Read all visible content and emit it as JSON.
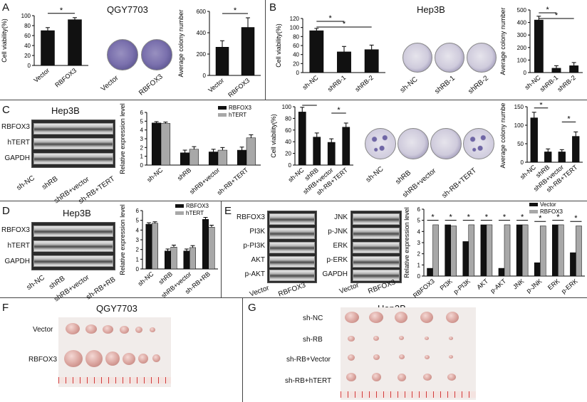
{
  "panels": {
    "A": {
      "label": "A",
      "title": "QGY7703",
      "dish_labels": [
        "Vector",
        "RBFOX3"
      ]
    },
    "B": {
      "label": "B",
      "title": "Hep3B",
      "dish_labels": [
        "sh-NC",
        "shRB-1",
        "shRB-2"
      ]
    },
    "C": {
      "label": "C",
      "blot_title": "Hep3B",
      "blot_rows": [
        "RBFOX3",
        "hTERT",
        "GAPDH"
      ],
      "dish_labels": [
        "sh-NC",
        "shRB",
        "shRB+vector",
        "sh-RB+TERT"
      ]
    },
    "D": {
      "label": "D",
      "blot_title": "Hep3B",
      "blot_rows": [
        "RBFOX3",
        "hTERT",
        "GAPDH"
      ]
    },
    "E": {
      "label": "E",
      "blot_left_rows": [
        "RBFOX3",
        "PI3K",
        "p-PI3K",
        "AKT",
        "p-AKT"
      ],
      "blot_right_rows": [
        "JNK",
        "p-JNK",
        "ERK",
        "p-ERK",
        "GAPDH"
      ],
      "lane_labels": [
        "Vector",
        "RBFOX3"
      ]
    },
    "F": {
      "label": "F",
      "title": "QGY7703",
      "row_labels": [
        "Vector",
        "RBFOX3"
      ]
    },
    "G": {
      "label": "G",
      "title": "Hep3B",
      "row_labels": [
        "sh-NC",
        "sh-RB",
        "sh-RB+Vector",
        "sh-RB+hTERT"
      ]
    }
  },
  "chart_data": [
    {
      "id": "A-viability",
      "type": "bar",
      "categories": [
        "Vector",
        "RBFOX3"
      ],
      "values": [
        70,
        92
      ],
      "errors": [
        6,
        4
      ],
      "ylabel": "Cell viability(%)",
      "ylim": [
        0,
        100
      ],
      "yticks": [
        "0",
        "20",
        "40",
        "60",
        "80",
        "100"
      ],
      "annotation": "*"
    },
    {
      "id": "A-colony",
      "type": "bar",
      "categories": [
        "Vector",
        "RBFOX3"
      ],
      "values": [
        265,
        450
      ],
      "errors": [
        60,
        90
      ],
      "ylabel": "Average colony number",
      "ylim": [
        0,
        600
      ],
      "yticks": [
        "0",
        "200",
        "400",
        "600"
      ],
      "annotation": "*"
    },
    {
      "id": "B-viability",
      "type": "bar",
      "categories": [
        "sh-NC",
        "shRB-1",
        "shRB-2"
      ],
      "values": [
        93,
        46,
        51
      ],
      "errors": [
        5,
        12,
        10
      ],
      "ylabel": "Cell viability(%)",
      "ylim": [
        0,
        120
      ],
      "yticks": [
        "0",
        "20",
        "40",
        "60",
        "80",
        "100",
        "120"
      ],
      "annotation": "*"
    },
    {
      "id": "B-colony",
      "type": "bar",
      "categories": [
        "sh-NC",
        "shRB-1",
        "shRB-2"
      ],
      "values": [
        420,
        35,
        55
      ],
      "errors": [
        30,
        20,
        25
      ],
      "ylabel": "Average colony number",
      "ylim": [
        0,
        500
      ],
      "yticks": [
        "0",
        "100",
        "200",
        "300",
        "400",
        "500"
      ],
      "annotation": "*"
    },
    {
      "id": "C-expression",
      "type": "bar",
      "categories": [
        "sh-NC",
        "shRB",
        "shRB+vector",
        "sh-RB+TERT"
      ],
      "series": [
        {
          "name": "RBFOX3",
          "values": [
            4.8,
            1.4,
            1.5,
            1.7
          ]
        },
        {
          "name": "hTERT",
          "values": [
            4.75,
            1.8,
            1.7,
            3.1
          ]
        }
      ],
      "errors": [
        0.15,
        0.3,
        0.3,
        0.35
      ],
      "ylabel": "Relative expression level",
      "ylim": [
        0,
        6
      ],
      "yticks": [
        "0",
        "1",
        "2",
        "3",
        "4",
        "5",
        "6"
      ]
    },
    {
      "id": "C-viability",
      "type": "bar",
      "categories": [
        "sh-NC",
        "shRB",
        "shRB+vector",
        "sh-RB+TERT"
      ],
      "values": [
        91,
        48,
        39,
        65
      ],
      "errors": [
        8,
        7,
        6,
        7
      ],
      "ylabel": "Cell viability(%)",
      "ylim": [
        0,
        100
      ],
      "yticks": [
        "0",
        "20",
        "40",
        "60",
        "80",
        "100"
      ],
      "annotation": "*"
    },
    {
      "id": "C-colony",
      "type": "bar",
      "categories": [
        "sh-NC",
        "shRB",
        "shRB+vector",
        "sh-RB+TERT"
      ],
      "values": [
        120,
        28,
        28,
        70
      ],
      "errors": [
        15,
        8,
        6,
        12
      ],
      "ylabel": "Average colony number",
      "ylim": [
        0,
        150
      ],
      "yticks": [
        "0",
        "50",
        "100",
        "150"
      ],
      "annotation": "*"
    },
    {
      "id": "D-expression",
      "type": "bar",
      "categories": [
        "sh-NC",
        "shRB",
        "shRB+vector",
        "sh-RB+RB"
      ],
      "series": [
        {
          "name": "RBFOX3",
          "values": [
            4.6,
            1.85,
            1.85,
            5.1
          ]
        },
        {
          "name": "hTERT",
          "values": [
            4.7,
            2.25,
            2.2,
            4.3
          ]
        }
      ],
      "errors": [
        0.15,
        0.2,
        0.2,
        0.2
      ],
      "ylabel": "Relative expression level",
      "ylim": [
        0,
        6
      ],
      "yticks": [
        "0",
        "1",
        "2",
        "3",
        "4",
        "5",
        "6"
      ]
    },
    {
      "id": "E-expression",
      "type": "bar",
      "categories": [
        "RBFOX3",
        "PI3K",
        "p-PI3K",
        "AKT",
        "p-AKT",
        "JNK",
        "p-JNK",
        "ERK",
        "p-ERK"
      ],
      "series": [
        {
          "name": "Vector",
          "values": [
            0.7,
            4.6,
            3.1,
            4.6,
            0.7,
            4.6,
            1.2,
            4.6,
            2.1
          ]
        },
        {
          "name": "RBFOX3",
          "values": [
            4.6,
            4.5,
            4.6,
            4.6,
            4.6,
            4.6,
            4.5,
            4.6,
            4.5
          ]
        }
      ],
      "ylabel": "Relative expression level",
      "ylim": [
        0,
        6
      ],
      "yticks": [
        "0",
        "1",
        "2",
        "3",
        "4",
        "5",
        "6"
      ],
      "annotation": "*"
    }
  ]
}
